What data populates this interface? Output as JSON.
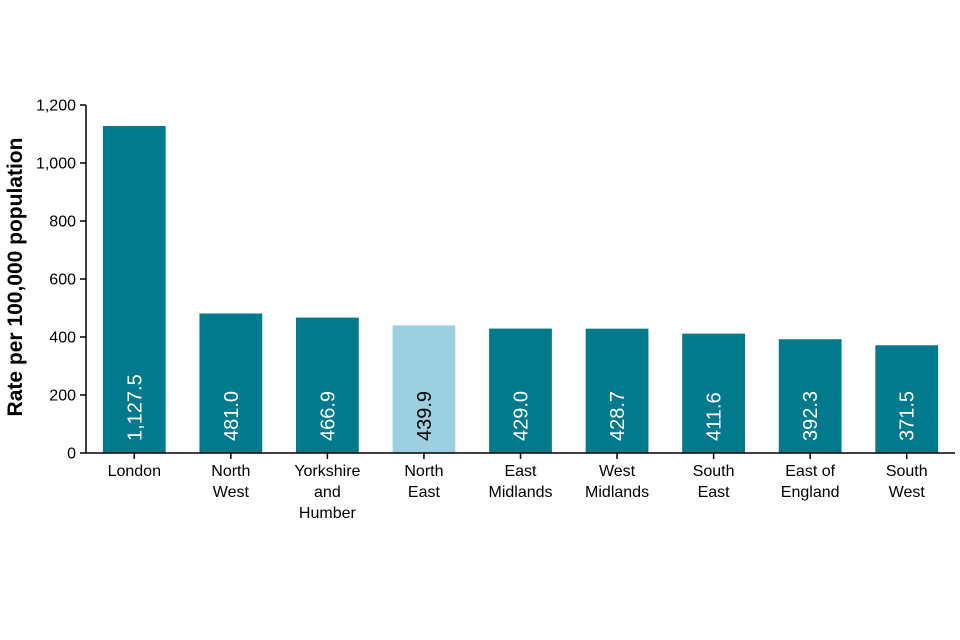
{
  "chart_data": {
    "type": "bar",
    "title": "",
    "xlabel": "",
    "ylabel": "Rate per 100,000 population",
    "ylim": [
      0,
      1200
    ],
    "yticks": [
      0,
      200,
      400,
      600,
      800,
      1000,
      1200
    ],
    "ytick_labels": [
      "0",
      "200",
      "400",
      "600",
      "800",
      "1,000",
      "1,200"
    ],
    "grid": false,
    "categories": [
      [
        "London"
      ],
      [
        "North",
        "West"
      ],
      [
        "Yorkshire",
        "and",
        "Humber"
      ],
      [
        "North",
        "East"
      ],
      [
        "East",
        "Midlands"
      ],
      [
        "West",
        "Midlands"
      ],
      [
        "South",
        "East"
      ],
      [
        "East of",
        "England"
      ],
      [
        "South",
        "West"
      ]
    ],
    "values": [
      1127.5,
      481.0,
      466.9,
      439.9,
      429.0,
      428.7,
      411.6,
      392.3,
      371.5
    ],
    "value_labels": [
      "1,127.5",
      "481.0",
      "466.9",
      "439.9",
      "429.0",
      "428.7",
      "411.6",
      "392.3",
      "371.5"
    ],
    "highlight_index": 3,
    "colors": {
      "bar": "#007A8C",
      "highlight": "#9CCFE0",
      "label_on_bar": "#ffffff",
      "label_on_highlight": "#000000"
    }
  }
}
